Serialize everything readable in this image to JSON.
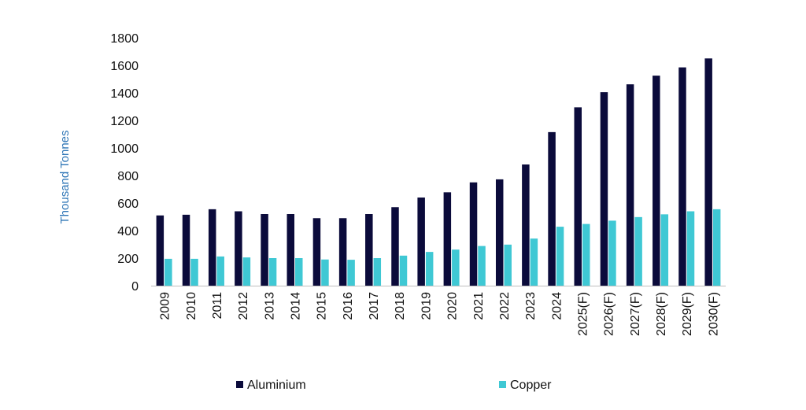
{
  "chart_data": {
    "type": "bar",
    "title": "",
    "xlabel": "",
    "ylabel": "Thousand Tonnes",
    "ylim": [
      0,
      1800
    ],
    "yticks": [
      0,
      200,
      400,
      600,
      800,
      1000,
      1200,
      1400,
      1600,
      1800
    ],
    "grid": false,
    "legend_position": "bottom",
    "categories": [
      "2009",
      "2010",
      "2011",
      "2012",
      "2013",
      "2014",
      "2015",
      "2016",
      "2017",
      "2018",
      "2019",
      "2020",
      "2021",
      "2022",
      "2023",
      "2024",
      "2025(F)",
      "2026(F)",
      "2027(F)",
      "2028(F)",
      "2029(F)",
      "2030(F)"
    ],
    "series": [
      {
        "name": "Aluminium",
        "color": "#0b0b3b",
        "values": [
          510,
          515,
          555,
          540,
          520,
          520,
          490,
          490,
          520,
          570,
          640,
          678,
          750,
          772,
          880,
          1115,
          1295,
          1405,
          1462,
          1525,
          1585,
          1650
        ]
      },
      {
        "name": "Copper",
        "color": "#3fc8d4",
        "values": [
          195,
          195,
          212,
          205,
          200,
          200,
          190,
          188,
          200,
          218,
          245,
          262,
          288,
          298,
          342,
          428,
          448,
          472,
          498,
          518,
          540,
          555
        ]
      }
    ],
    "ylabel_color": "#2e75b6"
  }
}
